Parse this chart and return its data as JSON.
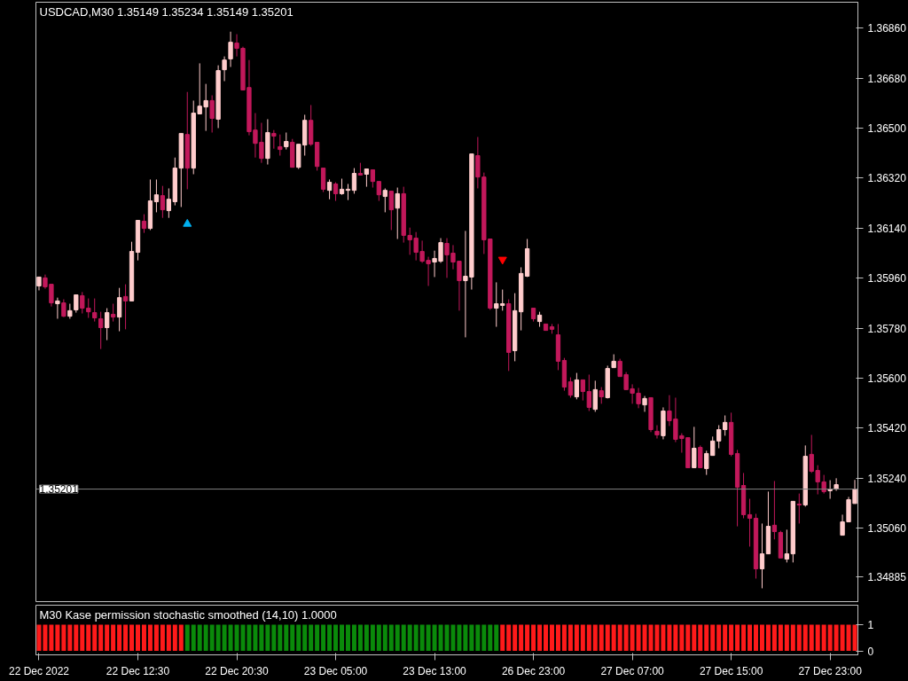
{
  "chart_data": [
    {
      "type": "candlestick",
      "title": "USDCAD,M30  1.35149 1.35234 1.35149 1.35201",
      "grid": false,
      "categories": [
        "22 Dec 2022",
        null,
        null,
        null,
        null,
        null,
        null,
        null,
        null,
        null,
        null,
        null,
        null,
        null,
        null,
        null,
        "22 Dec 12:30",
        null,
        null,
        null,
        null,
        null,
        null,
        null,
        null,
        null,
        null,
        null,
        null,
        null,
        null,
        null,
        "22 Dec 20:30",
        null,
        null,
        null,
        null,
        null,
        null,
        null,
        null,
        null,
        null,
        null,
        null,
        null,
        null,
        null,
        "23 Dec 05:00",
        null,
        null,
        null,
        null,
        null,
        null,
        null,
        null,
        null,
        null,
        null,
        null,
        null,
        null,
        null,
        "23 Dec 13:00",
        null,
        null,
        null,
        null,
        null,
        null,
        null,
        null,
        null,
        null,
        null,
        null,
        null,
        null,
        null,
        "26 Dec 23:00",
        null,
        null,
        null,
        null,
        null,
        null,
        null,
        null,
        null,
        null,
        null,
        null,
        null,
        null,
        null,
        "27 Dec 07:00",
        null,
        null,
        null,
        null,
        null,
        null,
        null,
        null,
        null,
        null,
        null,
        null,
        null,
        null,
        null,
        "27 Dec 15:00",
        null,
        null,
        null,
        null,
        null,
        null,
        null,
        null,
        null,
        null,
        null,
        null,
        null,
        null,
        null,
        "27 Dec 23:00",
        null,
        null,
        null,
        null
      ],
      "ylim": [
        1.34796,
        1.36953
      ],
      "yticks": [
        {
          "value": 1.3686,
          "label": "1.36860"
        },
        {
          "value": 1.3668,
          "label": "1.36680"
        },
        {
          "value": 1.365,
          "label": "1.36500"
        },
        {
          "value": 1.3632,
          "label": "1.36320"
        },
        {
          "value": 1.3614,
          "label": "1.36140"
        },
        {
          "value": 1.3596,
          "label": "1.35960"
        },
        {
          "value": 1.3578,
          "label": "1.35780"
        },
        {
          "value": 1.356,
          "label": "1.35600"
        },
        {
          "value": 1.3542,
          "label": "1.35420"
        },
        {
          "value": 1.3524,
          "label": "1.35240"
        },
        {
          "value": 1.3506,
          "label": "1.35060"
        },
        {
          "value": 1.34885,
          "label": "1.34885"
        }
      ],
      "ref_lines": [
        {
          "axis": "y",
          "value": 1.35201,
          "label": "1.35201",
          "color": "#808080"
        }
      ],
      "ohlc": [
        [
          1.35932,
          1.35964,
          1.35916,
          1.35964
        ],
        [
          1.35961,
          1.35973,
          1.35922,
          1.35929
        ],
        [
          1.35938,
          1.35938,
          1.35858,
          1.35871
        ],
        [
          1.35868,
          1.3589,
          1.35814,
          1.35878
        ],
        [
          1.35871,
          1.35884,
          1.3582,
          1.35823
        ],
        [
          1.35823,
          1.35868,
          1.35814,
          1.35843
        ],
        [
          1.35846,
          1.359,
          1.35836,
          1.359
        ],
        [
          1.35897,
          1.3591,
          1.35833,
          1.35852
        ],
        [
          1.35852,
          1.35887,
          1.35817,
          1.35839
        ],
        [
          1.35836,
          1.35887,
          1.35804,
          1.35817
        ],
        [
          1.35814,
          1.35839,
          1.35705,
          1.35782
        ],
        [
          1.35782,
          1.35852,
          1.35737,
          1.35836
        ],
        [
          1.3583,
          1.35868,
          1.35804,
          1.3582
        ],
        [
          1.3582,
          1.35925,
          1.35769,
          1.3589
        ],
        [
          1.35894,
          1.35938,
          1.35776,
          1.35878
        ],
        [
          1.35878,
          1.36091,
          1.35878,
          1.36056
        ],
        [
          1.36053,
          1.36168,
          1.36024,
          1.36168
        ],
        [
          1.36165,
          1.3619,
          1.36123,
          1.36139
        ],
        [
          1.36139,
          1.36315,
          1.36133,
          1.36238
        ],
        [
          1.36235,
          1.36315,
          1.36197,
          1.3626
        ],
        [
          1.36257,
          1.36292,
          1.36177,
          1.36206
        ],
        [
          1.36203,
          1.36283,
          1.36177,
          1.36244
        ],
        [
          1.36235,
          1.36394,
          1.36222,
          1.36356
        ],
        [
          1.36356,
          1.36481,
          1.36216,
          1.36481
        ],
        [
          1.36477,
          1.3663,
          1.3628,
          1.36356
        ],
        [
          1.36356,
          1.36599,
          1.36334,
          1.36554
        ],
        [
          1.36551,
          1.36733,
          1.36551,
          1.36579
        ],
        [
          1.36576,
          1.36659,
          1.3649,
          1.36599
        ],
        [
          1.36599,
          1.36618,
          1.36484,
          1.36535
        ],
        [
          1.36532,
          1.36726,
          1.365,
          1.36707
        ],
        [
          1.3671,
          1.36758,
          1.36669,
          1.36745
        ],
        [
          1.36749,
          1.36847,
          1.3672,
          1.36809
        ],
        [
          1.36806,
          1.36838,
          1.36758,
          1.36787
        ],
        [
          1.36787,
          1.36793,
          1.36637,
          1.36637
        ],
        [
          1.36646,
          1.36745,
          1.36474,
          1.36487
        ],
        [
          1.36493,
          1.36554,
          1.36394,
          1.36445
        ],
        [
          1.36449,
          1.36519,
          1.36375,
          1.36391
        ],
        [
          1.36391,
          1.36532,
          1.36369,
          1.36484
        ],
        [
          1.36481,
          1.36493,
          1.36426,
          1.36471
        ],
        [
          1.36433,
          1.36477,
          1.36401,
          1.36423
        ],
        [
          1.36433,
          1.36484,
          1.36423,
          1.36452
        ],
        [
          1.36449,
          1.36461,
          1.36359,
          1.36359
        ],
        [
          1.36359,
          1.36442,
          1.36353,
          1.36442
        ],
        [
          1.36439,
          1.36548,
          1.36401,
          1.36528
        ],
        [
          1.36528,
          1.36583,
          1.36436,
          1.36442
        ],
        [
          1.36449,
          1.36449,
          1.36347,
          1.36362
        ],
        [
          1.36356,
          1.36356,
          1.3627,
          1.3628
        ],
        [
          1.36276,
          1.36315,
          1.36244,
          1.36305
        ],
        [
          1.36299,
          1.36305,
          1.36238,
          1.36264
        ],
        [
          1.36264,
          1.36318,
          1.3626,
          1.3628
        ],
        [
          1.36276,
          1.36299,
          1.36241,
          1.3628
        ],
        [
          1.36276,
          1.36356,
          1.36264,
          1.36337
        ],
        [
          1.36337,
          1.36375,
          1.36331,
          1.36331
        ],
        [
          1.36334,
          1.36353,
          1.36289,
          1.36353
        ],
        [
          1.3635,
          1.3635,
          1.36286,
          1.36308
        ],
        [
          1.36308,
          1.36308,
          1.36238,
          1.3626
        ],
        [
          1.36254,
          1.36283,
          1.36197,
          1.36276
        ],
        [
          1.36273,
          1.36273,
          1.36133,
          1.36206
        ],
        [
          1.36212,
          1.36286,
          1.36101,
          1.36264
        ],
        [
          1.36264,
          1.36289,
          1.36088,
          1.36114
        ],
        [
          1.36114,
          1.36142,
          1.36044,
          1.36098
        ],
        [
          1.36104,
          1.36126,
          1.36024,
          1.36053
        ],
        [
          1.36056,
          1.36095,
          1.36015,
          1.36021
        ],
        [
          1.36024,
          1.36037,
          1.35932,
          1.36012
        ],
        [
          1.36018,
          1.36059,
          1.35964,
          1.36031
        ],
        [
          1.36021,
          1.36104,
          1.36015,
          1.36088
        ],
        [
          1.36085,
          1.36104,
          1.35961,
          1.36044
        ],
        [
          1.3605,
          1.36079,
          1.35992,
          1.36018
        ],
        [
          1.36021,
          1.36021,
          1.35843,
          1.35951
        ],
        [
          1.35951,
          1.3613,
          1.35747,
          1.35967
        ],
        [
          1.35964,
          1.36407,
          1.35919,
          1.36407
        ],
        [
          1.36401,
          1.36468,
          1.36283,
          1.36324
        ],
        [
          1.36324,
          1.3634,
          1.36047,
          1.36098
        ],
        [
          1.36101,
          1.36101,
          1.35846,
          1.35852
        ],
        [
          1.35852,
          1.35945,
          1.35785,
          1.35868
        ],
        [
          1.35862,
          1.35919,
          1.35843,
          1.35868
        ],
        [
          1.35868,
          1.35884,
          1.35626,
          1.35693
        ],
        [
          1.35699,
          1.35906,
          1.35661,
          1.35843
        ],
        [
          1.35839,
          1.35999,
          1.35772,
          1.35977
        ],
        [
          1.35967,
          1.36101,
          1.35964,
          1.36066
        ],
        [
          1.35852,
          1.35852,
          1.35804,
          1.35814
        ],
        [
          1.35804,
          1.35839,
          1.35785,
          1.35827
        ],
        [
          1.35795,
          1.35795,
          1.35772,
          1.35772
        ],
        [
          1.35785,
          1.35795,
          1.3576,
          1.35776
        ],
        [
          1.35756,
          1.35795,
          1.35629,
          1.35661
        ],
        [
          1.35664,
          1.35673,
          1.35555,
          1.35568
        ],
        [
          1.35587,
          1.35603,
          1.3553,
          1.35539
        ],
        [
          1.35533,
          1.35619,
          1.35524,
          1.35594
        ],
        [
          1.35594,
          1.35594,
          1.3552,
          1.35552
        ],
        [
          1.35552,
          1.35613,
          1.35482,
          1.35495
        ],
        [
          1.35488,
          1.35591,
          1.35479,
          1.35559
        ],
        [
          1.35555,
          1.35568,
          1.35508,
          1.35533
        ],
        [
          1.3553,
          1.35645,
          1.35527,
          1.35635
        ],
        [
          1.35638,
          1.35686,
          1.35638,
          1.35661
        ],
        [
          1.35661,
          1.3567,
          1.35606,
          1.35606
        ],
        [
          1.35613,
          1.35622,
          1.35559,
          1.35559
        ],
        [
          1.35562,
          1.35578,
          1.35508,
          1.35546
        ],
        [
          1.35546,
          1.35565,
          1.35492,
          1.35508
        ],
        [
          1.35504,
          1.35536,
          1.35479,
          1.35527
        ],
        [
          1.3553,
          1.3553,
          1.35406,
          1.35415
        ],
        [
          1.35409,
          1.35431,
          1.35383,
          1.35396
        ],
        [
          1.35393,
          1.35495,
          1.3538,
          1.35482
        ],
        [
          1.35482,
          1.35539,
          1.35428,
          1.35447
        ],
        [
          1.35453,
          1.3553,
          1.3537,
          1.3538
        ],
        [
          1.35393,
          1.35402,
          1.35332,
          1.35383
        ],
        [
          1.35386,
          1.35386,
          1.35278,
          1.35278
        ],
        [
          1.35278,
          1.35425,
          1.35278,
          1.35348
        ],
        [
          1.35351,
          1.35358,
          1.35278,
          1.35278
        ],
        [
          1.35275,
          1.35339,
          1.35252,
          1.35329
        ],
        [
          1.35322,
          1.3539,
          1.35322,
          1.35374
        ],
        [
          1.35374,
          1.35431,
          1.35348,
          1.35415
        ],
        [
          1.35415,
          1.35466,
          1.35393,
          1.35441
        ],
        [
          1.35441,
          1.35476,
          1.35319,
          1.35326
        ],
        [
          1.35329,
          1.35342,
          1.35067,
          1.35208
        ],
        [
          1.35214,
          1.35259,
          1.35096,
          1.35109
        ],
        [
          1.35109,
          1.35166,
          1.34994,
          1.35096
        ],
        [
          1.35096,
          1.35112,
          1.34879,
          1.34914
        ],
        [
          1.34914,
          1.35077,
          1.34844,
          1.34968
        ],
        [
          1.34968,
          1.35192,
          1.34968,
          1.35067
        ],
        [
          1.35071,
          1.3523,
          1.3502,
          1.35048
        ],
        [
          1.35045,
          1.35051,
          1.34953,
          1.34953
        ],
        [
          1.34949,
          1.35055,
          1.34937,
          1.34968
        ],
        [
          1.34968,
          1.35157,
          1.34937,
          1.35157
        ],
        [
          1.35147,
          1.35185,
          1.35077,
          1.35144
        ],
        [
          1.35144,
          1.35358,
          1.35138,
          1.35319
        ],
        [
          1.35326,
          1.35396,
          1.35259,
          1.35265
        ],
        [
          1.35268,
          1.35287,
          1.35182,
          1.35227
        ],
        [
          1.35227,
          1.35252,
          1.35185,
          1.35192
        ],
        [
          1.35195,
          1.35233,
          1.35166,
          1.35201
        ],
        [
          1.35201,
          1.3524,
          1.35195,
          1.35217
        ],
        [
          1.35035,
          1.35109,
          1.35035,
          1.35083
        ],
        [
          1.35083,
          1.35173,
          1.35083,
          1.35163
        ],
        [
          1.35149,
          1.35234,
          1.35149,
          1.35201
        ]
      ],
      "colors": [
        "#ffcccc",
        "#c2185b",
        "#c2185b",
        "#ffcccc",
        "#c2185b",
        "#ffcccc",
        "#ffcccc",
        "#c2185b",
        "#c2185b",
        "#c2185b",
        "#c2185b",
        "#ffcccc",
        "#c2185b",
        "#ffcccc",
        "#c2185b",
        "#ffcccc",
        "#ffcccc",
        "#c2185b",
        "#ffcccc",
        "#ffcccc",
        "#c2185b",
        "#ffcccc",
        "#ffcccc",
        "#ffcccc",
        "#c2185b",
        "#ffcccc",
        "#ffcccc",
        "#ffcccc",
        "#c2185b",
        "#ffcccc",
        "#ffcccc",
        "#ffcccc",
        "#c2185b",
        "#c2185b",
        "#c2185b",
        "#c2185b",
        "#c2185b",
        "#ffcccc",
        "#c2185b",
        "#c2185b",
        "#ffcccc",
        "#c2185b",
        "#ffcccc",
        "#ffcccc",
        "#c2185b",
        "#c2185b",
        "#c2185b",
        "#ffcccc",
        "#c2185b",
        "#ffcccc",
        "#ffcccc",
        "#ffcccc",
        "#c2185b",
        "#ffcccc",
        "#c2185b",
        "#c2185b",
        "#ffcccc",
        "#c2185b",
        "#ffcccc",
        "#c2185b",
        "#c2185b",
        "#c2185b",
        "#c2185b",
        "#c2185b",
        "#ffcccc",
        "#ffcccc",
        "#c2185b",
        "#c2185b",
        "#c2185b",
        "#ffcccc",
        "#ffcccc",
        "#c2185b",
        "#c2185b",
        "#c2185b",
        "#ffcccc",
        "#ffcccc",
        "#c2185b",
        "#ffcccc",
        "#ffcccc",
        "#ffcccc",
        "#c2185b",
        "#ffcccc",
        "#c2185b",
        "#c2185b",
        "#c2185b",
        "#c2185b",
        "#c2185b",
        "#ffcccc",
        "#c2185b",
        "#c2185b",
        "#ffcccc",
        "#c2185b",
        "#ffcccc",
        "#ffcccc",
        "#c2185b",
        "#c2185b",
        "#c2185b",
        "#c2185b",
        "#ffcccc",
        "#c2185b",
        "#c2185b",
        "#ffcccc",
        "#c2185b",
        "#c2185b",
        "#c2185b",
        "#c2185b",
        "#ffcccc",
        "#c2185b",
        "#ffcccc",
        "#ffcccc",
        "#ffcccc",
        "#ffcccc",
        "#c2185b",
        "#c2185b",
        "#c2185b",
        "#c2185b",
        "#c2185b",
        "#ffcccc",
        "#ffcccc",
        "#c2185b",
        "#c2185b",
        "#ffcccc",
        "#ffcccc",
        "#c2185b",
        "#ffcccc",
        "#c2185b",
        "#c2185b",
        "#c2185b",
        "#ffcccc",
        "#ffcccc",
        "#ffcccc",
        "#ffcccc",
        "#ffcccc"
      ],
      "series": [
        {
          "type": "scatter",
          "color": "#00b0f0",
          "marker": "triangle",
          "values": [
            null,
            null,
            null,
            null,
            null,
            null,
            null,
            null,
            null,
            null,
            null,
            null,
            null,
            null,
            null,
            null,
            null,
            null,
            null,
            null,
            null,
            null,
            null,
            null,
            1.36155,
            null,
            null,
            null,
            null,
            null,
            null,
            null,
            null,
            null,
            null,
            null,
            null,
            null,
            null,
            null,
            null,
            null,
            null,
            null,
            null,
            null,
            null,
            null,
            null,
            null,
            null,
            null,
            null,
            null,
            null,
            null,
            null,
            null,
            null,
            null,
            null,
            null,
            null,
            null,
            null,
            null,
            null,
            null,
            null,
            null,
            null,
            null,
            null,
            null,
            null,
            null,
            null,
            null,
            null,
            null,
            null,
            null,
            null,
            null,
            null,
            null,
            null,
            null,
            null,
            null,
            null,
            null,
            null,
            null,
            null,
            null,
            null,
            null,
            null,
            null,
            null,
            null,
            null,
            null,
            null,
            null,
            null,
            null,
            null,
            null,
            null,
            null,
            null,
            null,
            null,
            null,
            null,
            null,
            null,
            null,
            null,
            null,
            null,
            null,
            null,
            null,
            null,
            null,
            null,
            null,
            null,
            null,
            null
          ]
        },
        {
          "type": "scatter",
          "color": "#ff0000",
          "marker": "triangle",
          "values": [
            null,
            null,
            null,
            null,
            null,
            null,
            null,
            null,
            null,
            null,
            null,
            null,
            null,
            null,
            null,
            null,
            null,
            null,
            null,
            null,
            null,
            null,
            null,
            null,
            null,
            null,
            null,
            null,
            null,
            null,
            null,
            null,
            null,
            null,
            null,
            null,
            null,
            null,
            null,
            null,
            null,
            null,
            null,
            null,
            null,
            null,
            null,
            null,
            null,
            null,
            null,
            null,
            null,
            null,
            null,
            null,
            null,
            null,
            null,
            null,
            null,
            null,
            null,
            null,
            null,
            null,
            null,
            null,
            null,
            null,
            null,
            null,
            null,
            null,
            null,
            1.36027,
            null,
            null,
            null,
            null,
            null,
            null,
            null,
            null,
            null,
            null,
            null,
            null,
            null,
            null,
            null,
            null,
            null,
            null,
            null,
            null,
            null,
            null,
            null,
            null,
            null,
            null,
            null,
            null,
            null,
            null,
            null,
            null,
            null,
            null,
            null,
            null,
            null,
            null,
            null,
            null,
            null,
            null,
            null,
            null,
            null,
            null,
            null,
            null,
            null,
            null,
            null,
            null,
            null,
            null,
            null,
            null,
            null
          ]
        }
      ]
    },
    {
      "type": "bar",
      "title": "M30 Kase permission stochastic smoothed (14,10) 1.0000",
      "grid": false,
      "tick_labels": "y",
      "categories": [
        null,
        null,
        null,
        null,
        null,
        null,
        null,
        null,
        null,
        null,
        null,
        null,
        null,
        null,
        null,
        null,
        null,
        null,
        null,
        null,
        null,
        null,
        null,
        null,
        null,
        null,
        null,
        null,
        null,
        null,
        null,
        null,
        null,
        null,
        null,
        null,
        null,
        null,
        null,
        null,
        null,
        null,
        null,
        null,
        null,
        null,
        null,
        null,
        null,
        null,
        null,
        null,
        null,
        null,
        null,
        null,
        null,
        null,
        null,
        null,
        null,
        null,
        null,
        null,
        null,
        null,
        null,
        null,
        null,
        null,
        null,
        null,
        null,
        null,
        null,
        null,
        null,
        null,
        null,
        null,
        null,
        null,
        null,
        null,
        null,
        null,
        null,
        null,
        null,
        null,
        null,
        null,
        null,
        null,
        null,
        null,
        null,
        null,
        null,
        null,
        null,
        null,
        null,
        null,
        null,
        null,
        null,
        null,
        null,
        null,
        null,
        null,
        null,
        null,
        null,
        null,
        null,
        null,
        null,
        null,
        null,
        null,
        null,
        null,
        null,
        null,
        null,
        null,
        null,
        null,
        null,
        null,
        null
      ],
      "values": [
        1,
        1,
        1,
        1,
        1,
        1,
        1,
        1,
        1,
        1,
        1,
        1,
        1,
        1,
        1,
        1,
        1,
        1,
        1,
        1,
        1,
        1,
        1,
        1,
        1,
        1,
        1,
        1,
        1,
        1,
        1,
        1,
        1,
        1,
        1,
        1,
        1,
        1,
        1,
        1,
        1,
        1,
        1,
        1,
        1,
        1,
        1,
        1,
        1,
        1,
        1,
        1,
        1,
        1,
        1,
        1,
        1,
        1,
        1,
        1,
        1,
        1,
        1,
        1,
        1,
        1,
        1,
        1,
        1,
        1,
        1,
        1,
        1,
        1,
        1,
        1,
        1,
        1,
        1,
        1,
        1,
        1,
        1,
        1,
        1,
        1,
        1,
        1,
        1,
        1,
        1,
        1,
        1,
        1,
        1,
        1,
        1,
        1,
        1,
        1,
        1,
        1,
        1,
        1,
        1,
        1,
        1,
        1,
        1,
        1,
        1,
        1,
        1,
        1,
        1,
        1,
        1,
        1,
        1,
        1,
        1,
        1,
        1,
        1,
        1,
        1,
        1,
        1,
        1,
        1,
        1,
        1,
        1
      ],
      "colors": [
        "#ff1a1a",
        "#ff1a1a",
        "#ff1a1a",
        "#ff1a1a",
        "#ff1a1a",
        "#ff1a1a",
        "#ff1a1a",
        "#ff1a1a",
        "#ff1a1a",
        "#ff1a1a",
        "#ff1a1a",
        "#ff1a1a",
        "#ff1a1a",
        "#ff1a1a",
        "#ff1a1a",
        "#ff1a1a",
        "#ff1a1a",
        "#ff1a1a",
        "#ff1a1a",
        "#ff1a1a",
        "#ff1a1a",
        "#ff1a1a",
        "#ff1a1a",
        "#ff1a1a",
        "#0a8a0a",
        "#0a8a0a",
        "#0a8a0a",
        "#0a8a0a",
        "#0a8a0a",
        "#0a8a0a",
        "#0a8a0a",
        "#0a8a0a",
        "#0a8a0a",
        "#0a8a0a",
        "#0a8a0a",
        "#0a8a0a",
        "#0a8a0a",
        "#0a8a0a",
        "#0a8a0a",
        "#0a8a0a",
        "#0a8a0a",
        "#0a8a0a",
        "#0a8a0a",
        "#0a8a0a",
        "#0a8a0a",
        "#0a8a0a",
        "#0a8a0a",
        "#0a8a0a",
        "#0a8a0a",
        "#0a8a0a",
        "#0a8a0a",
        "#0a8a0a",
        "#0a8a0a",
        "#0a8a0a",
        "#0a8a0a",
        "#0a8a0a",
        "#0a8a0a",
        "#0a8a0a",
        "#0a8a0a",
        "#0a8a0a",
        "#0a8a0a",
        "#0a8a0a",
        "#0a8a0a",
        "#0a8a0a",
        "#0a8a0a",
        "#0a8a0a",
        "#0a8a0a",
        "#0a8a0a",
        "#0a8a0a",
        "#0a8a0a",
        "#0a8a0a",
        "#0a8a0a",
        "#0a8a0a",
        "#0a8a0a",
        "#0a8a0a",
        "#ff1a1a",
        "#ff1a1a",
        "#ff1a1a",
        "#ff1a1a",
        "#ff1a1a",
        "#ff1a1a",
        "#ff1a1a",
        "#ff1a1a",
        "#ff1a1a",
        "#ff1a1a",
        "#ff1a1a",
        "#ff1a1a",
        "#ff1a1a",
        "#ff1a1a",
        "#ff1a1a",
        "#ff1a1a",
        "#ff1a1a",
        "#ff1a1a",
        "#ff1a1a",
        "#ff1a1a",
        "#ff1a1a",
        "#ff1a1a",
        "#ff1a1a",
        "#ff1a1a",
        "#ff1a1a",
        "#ff1a1a",
        "#ff1a1a",
        "#ff1a1a",
        "#ff1a1a",
        "#ff1a1a",
        "#ff1a1a",
        "#ff1a1a",
        "#ff1a1a",
        "#ff1a1a",
        "#ff1a1a",
        "#ff1a1a",
        "#ff1a1a",
        "#ff1a1a",
        "#ff1a1a",
        "#ff1a1a",
        "#ff1a1a",
        "#ff1a1a",
        "#ff1a1a",
        "#ff1a1a",
        "#ff1a1a",
        "#ff1a1a",
        "#ff1a1a",
        "#ff1a1a",
        "#ff1a1a",
        "#ff1a1a",
        "#ff1a1a",
        "#ff1a1a",
        "#ff1a1a",
        "#ff1a1a",
        "#ff1a1a",
        "#ff1a1a",
        "#ff1a1a",
        "#ff1a1a"
      ],
      "ylim": [
        -0.15,
        1.75
      ],
      "yticks": [
        0,
        1
      ]
    }
  ]
}
